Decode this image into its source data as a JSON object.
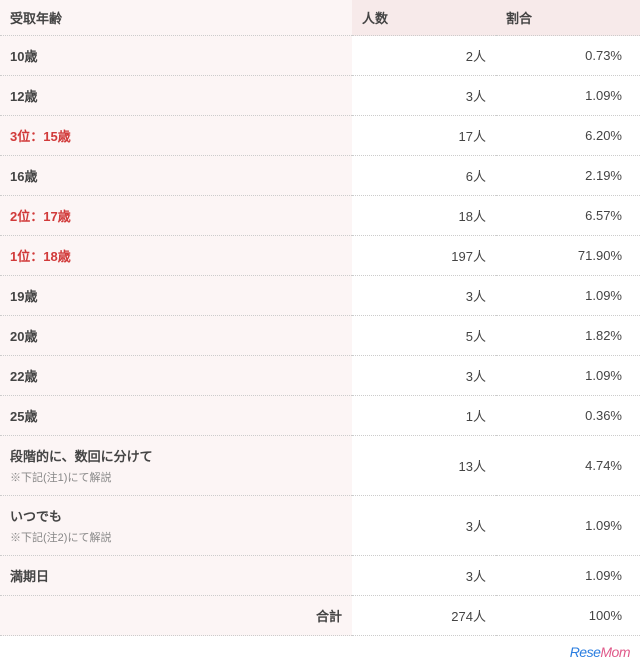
{
  "header": {
    "label": "受取年齢",
    "count": "人数",
    "ratio": "割合"
  },
  "rows": [
    {
      "rank": "",
      "label": "10歳",
      "sub": "",
      "count": "2人",
      "ratio": "0.73%"
    },
    {
      "rank": "",
      "label": "12歳",
      "sub": "",
      "count": "3人",
      "ratio": "1.09%"
    },
    {
      "rank": "3位：",
      "label": "15歳",
      "sub": "",
      "count": "17人",
      "ratio": "6.20%"
    },
    {
      "rank": "",
      "label": "16歳",
      "sub": "",
      "count": "6人",
      "ratio": "2.19%"
    },
    {
      "rank": "2位：",
      "label": "17歳",
      "sub": "",
      "count": "18人",
      "ratio": "6.57%"
    },
    {
      "rank": "1位：",
      "label": "18歳",
      "sub": "",
      "count": "197人",
      "ratio": "71.90%"
    },
    {
      "rank": "",
      "label": "19歳",
      "sub": "",
      "count": "3人",
      "ratio": "1.09%"
    },
    {
      "rank": "",
      "label": "20歳",
      "sub": "",
      "count": "5人",
      "ratio": "1.82%"
    },
    {
      "rank": "",
      "label": "22歳",
      "sub": "",
      "count": "3人",
      "ratio": "1.09%"
    },
    {
      "rank": "",
      "label": "25歳",
      "sub": "",
      "count": "1人",
      "ratio": "0.36%"
    },
    {
      "rank": "",
      "label": "段階的に、数回に分けて",
      "sub": "※下記(注1)にて解説",
      "count": "13人",
      "ratio": "4.74%"
    },
    {
      "rank": "",
      "label": "いつでも",
      "sub": "※下記(注2)にて解説",
      "count": "3人",
      "ratio": "1.09%"
    },
    {
      "rank": "",
      "label": "満期日",
      "sub": "",
      "count": "3人",
      "ratio": "1.09%"
    }
  ],
  "footer": {
    "label": "合計",
    "count": "274人",
    "ratio": "100%"
  },
  "logo": {
    "part1": "Rese",
    "part2": "Mom"
  },
  "colors": {
    "header_bg": "#f7eaea",
    "label_bg": "#fcf5f5",
    "rank_color": "#d13a3a",
    "border": "#ccc",
    "sub": "#888"
  }
}
